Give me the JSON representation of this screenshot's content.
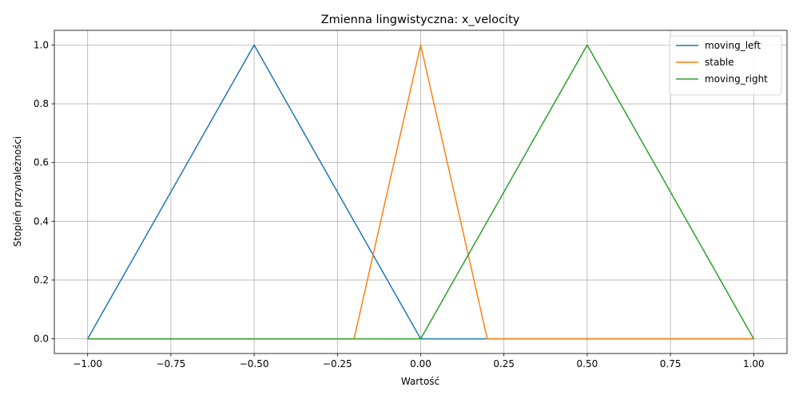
{
  "chart_data": {
    "type": "line",
    "title": "Zmienna lingwistyczna: x_velocity",
    "xlabel": "Wartość",
    "ylabel": "Stopień przynależności",
    "xlim": [
      -1.1,
      1.1
    ],
    "ylim": [
      -0.05,
      1.05
    ],
    "xticks": [
      -1.0,
      -0.75,
      -0.5,
      -0.25,
      0.0,
      0.25,
      0.5,
      0.75,
      1.0
    ],
    "xtick_labels": [
      "−1.00",
      "−0.75",
      "−0.50",
      "−0.25",
      "0.00",
      "0.25",
      "0.50",
      "0.75",
      "1.00"
    ],
    "yticks": [
      0.0,
      0.2,
      0.4,
      0.6,
      0.8,
      1.0
    ],
    "ytick_labels": [
      "0.0",
      "0.2",
      "0.4",
      "0.6",
      "0.8",
      "1.0"
    ],
    "grid": true,
    "legend_position": "top-right",
    "series": [
      {
        "name": "moving_left",
        "color": "#1f77b4",
        "x": [
          -1.0,
          -0.5,
          0.0,
          0.2,
          1.0
        ],
        "y": [
          0.0,
          1.0,
          0.0,
          0.0,
          0.0
        ]
      },
      {
        "name": "stable",
        "color": "#ff7f0e",
        "x": [
          -1.0,
          -0.2,
          0.0,
          0.2,
          1.0
        ],
        "y": [
          0.0,
          0.0,
          1.0,
          0.0,
          0.0
        ]
      },
      {
        "name": "moving_right",
        "color": "#2ca02c",
        "x": [
          -1.0,
          0.0,
          0.5,
          1.0
        ],
        "y": [
          0.0,
          0.0,
          1.0,
          0.0
        ]
      }
    ]
  }
}
